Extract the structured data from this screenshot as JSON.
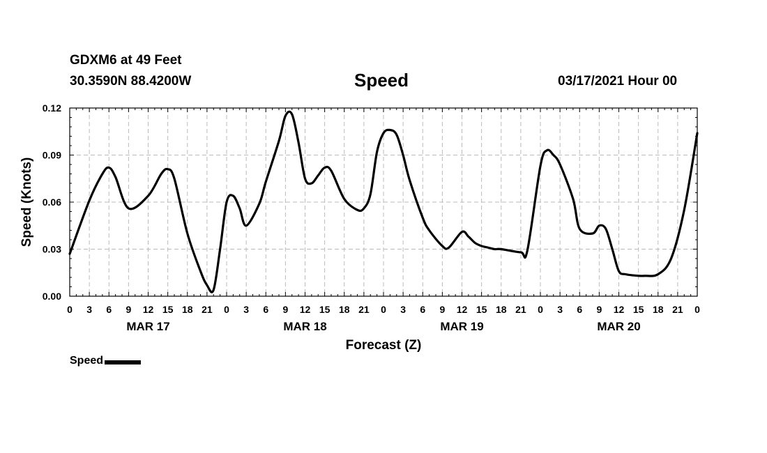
{
  "header": {
    "station": "GDXM6 at 49 Feet",
    "coords": "30.3590N 88.4200W",
    "title": "Speed",
    "datetime": "03/17/2021 Hour 00"
  },
  "legend": {
    "label": "Speed"
  },
  "colors": {
    "line": "#000000",
    "grid": "#bbbbbb",
    "background": "#ffffff"
  },
  "chart_data": {
    "type": "line",
    "title": "Speed",
    "xlabel": "Forecast (Z)",
    "ylabel": "Speed (Knots)",
    "xlim": [
      0,
      96
    ],
    "ylim": [
      0,
      0.12
    ],
    "grid": true,
    "legend_position": "bottom-left",
    "x_tick_hours": [
      0,
      3,
      6,
      9,
      12,
      15,
      18,
      21,
      24,
      27,
      30,
      33,
      36,
      39,
      42,
      45,
      48,
      51,
      54,
      57,
      60,
      63,
      66,
      69,
      72,
      75,
      78,
      81,
      84,
      87,
      90,
      93,
      96
    ],
    "x_tick_labels": [
      "0",
      "3",
      "6",
      "9",
      "12",
      "15",
      "18",
      "21",
      "0",
      "3",
      "6",
      "9",
      "12",
      "15",
      "18",
      "21",
      "0",
      "3",
      "6",
      "9",
      "12",
      "15",
      "18",
      "21",
      "0",
      "3",
      "6",
      "9",
      "12",
      "15",
      "18",
      "21",
      "0"
    ],
    "y_ticks": [
      0,
      0.03,
      0.06,
      0.09,
      0.12
    ],
    "y_tick_labels": [
      "0.00",
      "0.03",
      "0.06",
      "0.09",
      "0.12"
    ],
    "day_labels": [
      {
        "label": "MAR 17",
        "hour": 12
      },
      {
        "label": "MAR 18",
        "hour": 36
      },
      {
        "label": "MAR 19",
        "hour": 60
      },
      {
        "label": "MAR 20",
        "hour": 84
      }
    ],
    "series": [
      {
        "name": "Speed",
        "x": [
          0,
          3,
          5,
          6,
          7,
          9,
          12,
          14,
          15,
          16,
          18,
          20,
          21,
          22,
          23,
          24,
          25,
          26,
          27,
          29,
          30,
          32,
          33,
          34,
          35,
          36,
          37,
          38,
          39,
          40,
          42,
          44,
          45,
          46,
          47,
          48,
          49,
          50,
          51,
          52,
          54,
          55,
          57,
          58,
          60,
          61,
          62,
          63,
          64,
          65,
          66,
          69,
          70,
          72,
          73,
          74,
          75,
          77,
          78,
          80,
          81,
          82,
          83,
          84,
          85,
          87,
          88,
          90,
          92,
          94,
          96
        ],
        "values": [
          0.027,
          0.061,
          0.078,
          0.082,
          0.076,
          0.056,
          0.064,
          0.078,
          0.081,
          0.075,
          0.04,
          0.016,
          0.007,
          0.004,
          0.03,
          0.06,
          0.064,
          0.056,
          0.045,
          0.059,
          0.073,
          0.099,
          0.115,
          0.116,
          0.098,
          0.075,
          0.072,
          0.077,
          0.082,
          0.08,
          0.062,
          0.055,
          0.056,
          0.065,
          0.092,
          0.104,
          0.106,
          0.103,
          0.09,
          0.074,
          0.05,
          0.042,
          0.032,
          0.031,
          0.041,
          0.038,
          0.034,
          0.032,
          0.031,
          0.03,
          0.03,
          0.028,
          0.029,
          0.083,
          0.093,
          0.09,
          0.084,
          0.062,
          0.043,
          0.04,
          0.045,
          0.043,
          0.03,
          0.016,
          0.014,
          0.013,
          0.013,
          0.014,
          0.024,
          0.055,
          0.104
        ]
      }
    ]
  }
}
